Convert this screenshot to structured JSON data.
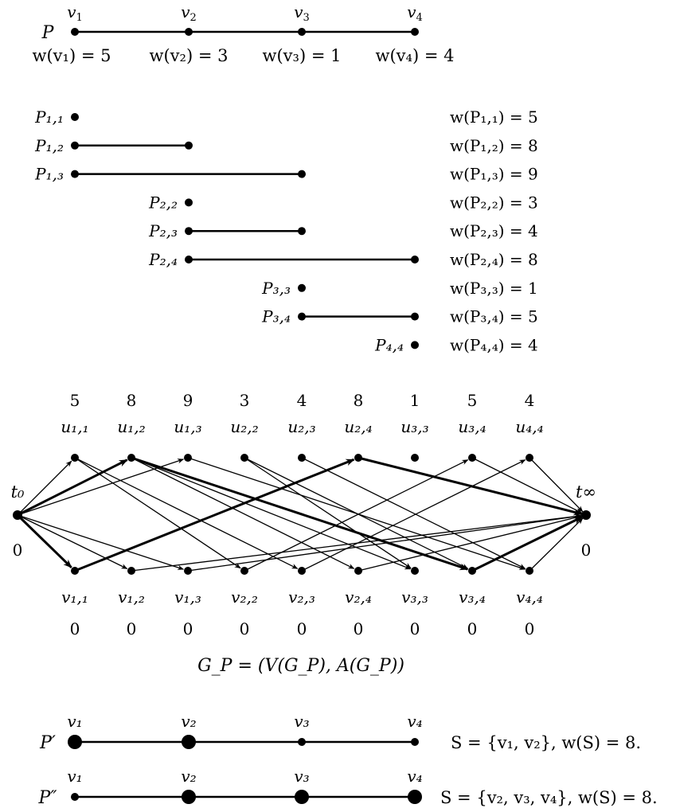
{
  "path_top": {
    "label": "P",
    "vertices": [
      {
        "name": "v1",
        "sub": "1"
      },
      {
        "name": "v2",
        "sub": "2"
      },
      {
        "name": "v3",
        "sub": "3"
      },
      {
        "name": "v4",
        "sub": "4"
      }
    ],
    "weights": [
      {
        "text": "w(v₁) = 5",
        "value": 5
      },
      {
        "text": "w(v₂) = 3",
        "value": 3
      },
      {
        "text": "w(v₃) = 1",
        "value": 1
      },
      {
        "text": "w(v₄) = 4",
        "value": 4
      }
    ]
  },
  "subpaths": [
    {
      "label": "P₁,₁",
      "from": 1,
      "to": 1,
      "weight_text": "w(P₁,₁) = 5",
      "weight": 5
    },
    {
      "label": "P₁,₂",
      "from": 1,
      "to": 2,
      "weight_text": "w(P₁,₂) = 8",
      "weight": 8
    },
    {
      "label": "P₁,₃",
      "from": 1,
      "to": 3,
      "weight_text": "w(P₁,₃) = 9",
      "weight": 9
    },
    {
      "label": "P₂,₂",
      "from": 2,
      "to": 2,
      "weight_text": "w(P₂,₂) = 3",
      "weight": 3
    },
    {
      "label": "P₂,₃",
      "from": 2,
      "to": 3,
      "weight_text": "w(P₂,₃) = 4",
      "weight": 4
    },
    {
      "label": "P₂,₄",
      "from": 2,
      "to": 4,
      "weight_text": "w(P₂,₄) = 8",
      "weight": 8
    },
    {
      "label": "P₃,₃",
      "from": 3,
      "to": 3,
      "weight_text": "w(P₃,₃) = 1",
      "weight": 1
    },
    {
      "label": "P₃,₄",
      "from": 3,
      "to": 4,
      "weight_text": "w(P₃,₄) = 5",
      "weight": 5
    },
    {
      "label": "P₄,₄",
      "from": 4,
      "to": 4,
      "weight_text": "w(P₄,₄) = 4",
      "weight": 4
    }
  ],
  "graph": {
    "source": {
      "label": "t₀",
      "weight": "0"
    },
    "sink": {
      "label": "t∞",
      "weight": "0"
    },
    "u_nodes": [
      {
        "label": "u₁,₁",
        "weight": "5"
      },
      {
        "label": "u₁,₂",
        "weight": "8"
      },
      {
        "label": "u₁,₃",
        "weight": "9"
      },
      {
        "label": "u₂,₂",
        "weight": "3"
      },
      {
        "label": "u₂,₃",
        "weight": "4"
      },
      {
        "label": "u₂,₄",
        "weight": "8"
      },
      {
        "label": "u₃,₃",
        "weight": "1"
      },
      {
        "label": "u₃,₄",
        "weight": "5"
      },
      {
        "label": "u₄,₄",
        "weight": "4"
      }
    ],
    "v_nodes": [
      {
        "label": "v₁,₁",
        "weight": "0"
      },
      {
        "label": "v₁,₂",
        "weight": "0"
      },
      {
        "label": "v₁,₃",
        "weight": "0"
      },
      {
        "label": "v₂,₂",
        "weight": "0"
      },
      {
        "label": "v₂,₃",
        "weight": "0"
      },
      {
        "label": "v₂,₄",
        "weight": "0"
      },
      {
        "label": "v₃,₃",
        "weight": "0"
      },
      {
        "label": "v₃,₄",
        "weight": "0"
      },
      {
        "label": "v₄,₄",
        "weight": "0"
      }
    ],
    "arcs": [
      {
        "from": "t0",
        "to": "u0",
        "bold": false
      },
      {
        "from": "t0",
        "to": "u1",
        "bold": true
      },
      {
        "from": "t0",
        "to": "u2",
        "bold": false
      },
      {
        "from": "t0",
        "to": "v0",
        "bold": true
      },
      {
        "from": "t0",
        "to": "v1",
        "bold": false
      },
      {
        "from": "t0",
        "to": "v2",
        "bold": false
      },
      {
        "from": "u0",
        "to": "v4",
        "bold": false
      },
      {
        "from": "u0",
        "to": "v3",
        "bold": false
      },
      {
        "from": "u1",
        "to": "v7",
        "bold": true
      },
      {
        "from": "u1",
        "to": "v6",
        "bold": false
      },
      {
        "from": "u1",
        "to": "v5",
        "bold": false
      },
      {
        "from": "u2",
        "to": "v8",
        "bold": false
      },
      {
        "from": "u3",
        "to": "v6",
        "bold": false
      },
      {
        "from": "u3",
        "to": "v7",
        "bold": false
      },
      {
        "from": "u4",
        "to": "v8",
        "bold": false
      },
      {
        "from": "u5",
        "to": "tinf",
        "bold": true
      },
      {
        "from": "u7",
        "to": "tinf",
        "bold": false
      },
      {
        "from": "u8",
        "to": "tinf",
        "bold": false
      },
      {
        "from": "v0",
        "to": "u5",
        "bold": true
      },
      {
        "from": "v1",
        "to": "tinf",
        "bold": false
      },
      {
        "from": "v2",
        "to": "tinf",
        "bold": false
      },
      {
        "from": "v3",
        "to": "u7",
        "bold": false
      },
      {
        "from": "v4",
        "to": "u8",
        "bold": false
      },
      {
        "from": "v5",
        "to": "tinf",
        "bold": false
      },
      {
        "from": "v7",
        "to": "tinf",
        "bold": true
      },
      {
        "from": "v8",
        "to": "tinf",
        "bold": false
      }
    ],
    "caption": "G_P = (V(G_P), A(G_P))"
  },
  "solutions": [
    {
      "label": "P′",
      "vertex_labels": [
        "v₁",
        "v₂",
        "v₃",
        "v₄"
      ],
      "selected": [
        true,
        true,
        false,
        false
      ],
      "formula": "S = {v₁, v₂},  w(S) = 8."
    },
    {
      "label": "P″",
      "vertex_labels": [
        "v₁",
        "v₂",
        "v₃",
        "v₄"
      ],
      "selected": [
        false,
        true,
        true,
        true
      ],
      "formula": "S = {v₂, v₃, v₄},  w(S) = 8."
    }
  ]
}
